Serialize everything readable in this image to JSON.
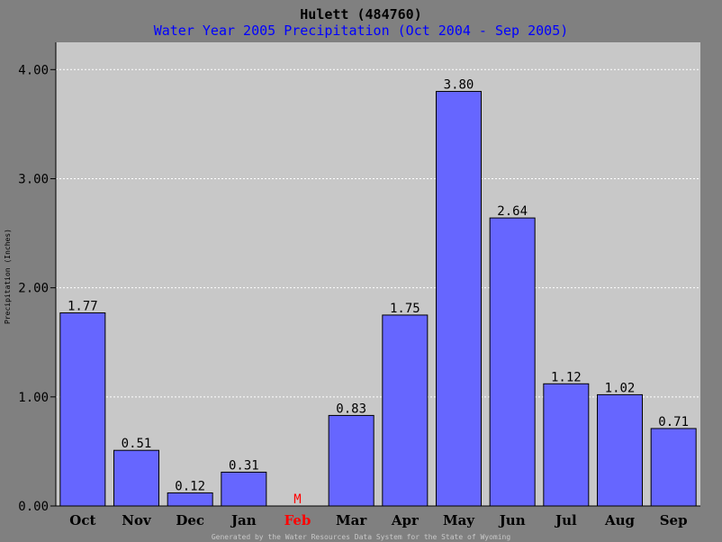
{
  "chart_data": {
    "type": "bar",
    "title": "Hulett (484760)",
    "subtitle": "Water Year 2005 Precipitation (Oct 2004 - Sep 2005)",
    "ylabel": "Precipitation (Inches)",
    "xlabel": "",
    "categories": [
      "Oct",
      "Nov",
      "Dec",
      "Jan",
      "Feb",
      "Mar",
      "Apr",
      "May",
      "Jun",
      "Jul",
      "Aug",
      "Sep"
    ],
    "values": [
      1.77,
      0.51,
      0.12,
      0.31,
      null,
      0.83,
      1.75,
      3.8,
      2.64,
      1.12,
      1.02,
      0.71
    ],
    "value_labels": [
      "1.77",
      "0.51",
      "0.12",
      "0.31",
      "M",
      "0.83",
      "1.75",
      "3.80",
      "2.64",
      "1.12",
      "1.02",
      "0.71"
    ],
    "missing_marker": "M",
    "ylim": [
      0,
      4.25
    ],
    "yticks": [
      0,
      1,
      2,
      3,
      4
    ],
    "ytick_labels": [
      "0.00",
      "1.00",
      "2.00",
      "3.00",
      "4.00"
    ],
    "grid": true,
    "footer": "Generated by the Water Resources Data System for the State of Wyoming",
    "colors": {
      "bar": "#6666ff",
      "bar_edge": "#000000",
      "plot_background": "#c8c8c8",
      "figure_background": "#808080",
      "title": "#000000",
      "subtitle": "#0000ff",
      "missing": "#ff0000",
      "grid": "#ffffff",
      "footer": "#c8c8c8"
    }
  }
}
